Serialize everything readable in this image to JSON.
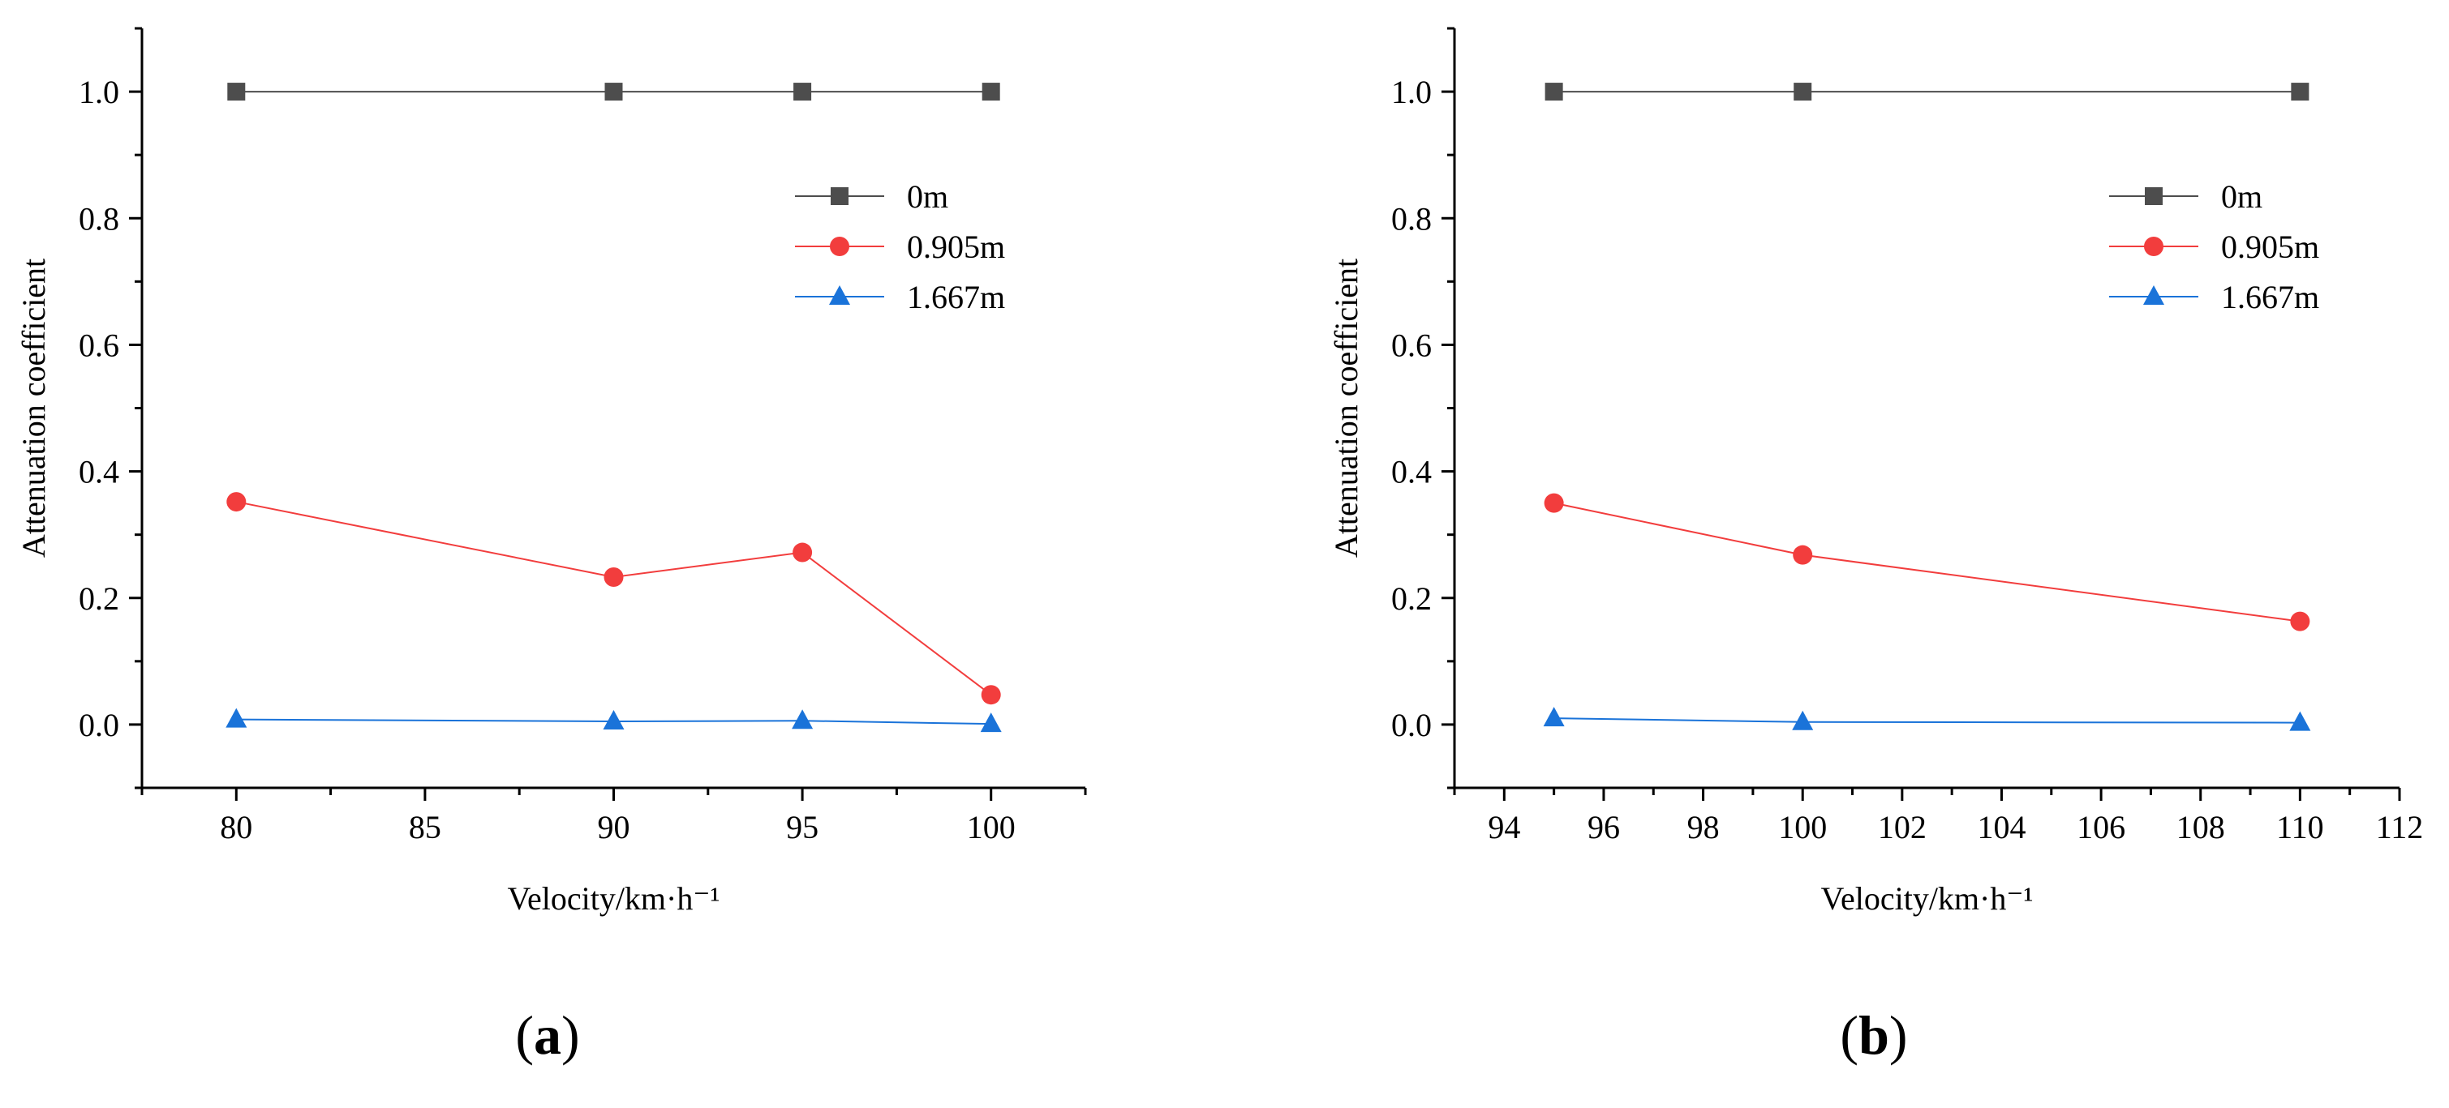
{
  "colors": {
    "axis": "#000000",
    "series_0m": "#4d4d4d",
    "series_0905m": "#f23d3d",
    "series_1667m": "#1a73d9"
  },
  "chart_data": [
    {
      "id": "a",
      "type": "line",
      "panel_label": "a",
      "xlabel": "Velocity/km·h⁻¹",
      "ylabel": "Attenuation coefficient",
      "xlim": [
        77.5,
        102.5
      ],
      "ylim": [
        -0.1,
        1.1
      ],
      "xticks": [
        80,
        85,
        90,
        95,
        100
      ],
      "xtick_labels": [
        "80",
        "85",
        "90",
        "95",
        "100"
      ],
      "x_minor_step": 2.5,
      "yticks": [
        0.0,
        0.2,
        0.4,
        0.6,
        0.8,
        1.0
      ],
      "ytick_labels": [
        "0.0",
        "0.2",
        "0.4",
        "0.6",
        "0.8",
        "1.0"
      ],
      "y_minor_step": 0.1,
      "legend_position": "top-right",
      "grid": false,
      "series": [
        {
          "name": "0m",
          "marker": "square",
          "color": "#4d4d4d",
          "x": [
            80,
            90,
            95,
            100
          ],
          "y": [
            1.0,
            1.0,
            1.0,
            1.0
          ]
        },
        {
          "name": "0.905m",
          "marker": "circle",
          "color": "#f23d3d",
          "x": [
            80,
            90,
            95,
            100
          ],
          "y": [
            0.352,
            0.233,
            0.272,
            0.047
          ]
        },
        {
          "name": "1.667m",
          "marker": "triangle",
          "color": "#1a73d9",
          "x": [
            80,
            90,
            95,
            100
          ],
          "y": [
            0.008,
            0.005,
            0.006,
            0.001
          ]
        }
      ]
    },
    {
      "id": "b",
      "type": "line",
      "panel_label": "b",
      "xlabel": "Velocity/km·h⁻¹",
      "ylabel": "Attenuation coefficient",
      "xlim": [
        93,
        112
      ],
      "ylim": [
        -0.1,
        1.1
      ],
      "xticks": [
        94,
        96,
        98,
        100,
        102,
        104,
        106,
        108,
        110,
        112
      ],
      "xtick_labels": [
        "94",
        "96",
        "98",
        "100",
        "102",
        "104",
        "106",
        "108",
        "110",
        "112"
      ],
      "x_minor_step": 1,
      "yticks": [
        0.0,
        0.2,
        0.4,
        0.6,
        0.8,
        1.0
      ],
      "ytick_labels": [
        "0.0",
        "0.2",
        "0.4",
        "0.6",
        "0.8",
        "1.0"
      ],
      "y_minor_step": 0.1,
      "legend_position": "top-right",
      "grid": false,
      "series": [
        {
          "name": "0m",
          "marker": "square",
          "color": "#4d4d4d",
          "x": [
            95,
            100,
            110
          ],
          "y": [
            1.0,
            1.0,
            1.0
          ]
        },
        {
          "name": "0.905m",
          "marker": "circle",
          "color": "#f23d3d",
          "x": [
            95,
            100,
            110
          ],
          "y": [
            0.35,
            0.268,
            0.163
          ]
        },
        {
          "name": "1.667m",
          "marker": "triangle",
          "color": "#1a73d9",
          "x": [
            95,
            100,
            110
          ],
          "y": [
            0.01,
            0.004,
            0.003
          ]
        }
      ]
    }
  ]
}
